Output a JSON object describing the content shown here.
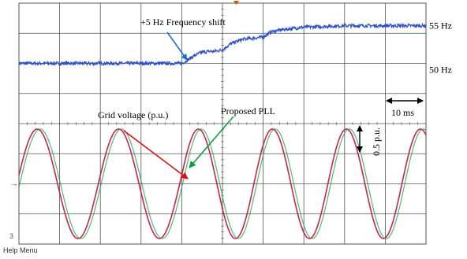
{
  "chart_data": [
    {
      "type": "line",
      "title": "",
      "xlabel": "",
      "ylabel": "",
      "xlim_ms": [
        0,
        100
      ],
      "ylim_hz": [
        42,
        58
      ],
      "grid": true,
      "series": [
        {
          "name": "",
          "color": "#3050c8",
          "x_ms": [
            0,
            20,
            40,
            41,
            43,
            45,
            47,
            48,
            50,
            52,
            55,
            60,
            62,
            65,
            70,
            75,
            80,
            100
          ],
          "y_hz": [
            50,
            50,
            50,
            50.3,
            51,
            51.5,
            51.6,
            51.6,
            51.8,
            52.6,
            53.2,
            53.5,
            54.2,
            54.5,
            54.8,
            54.9,
            55,
            55
          ]
        }
      ],
      "value_labels": [
        "55 Hz",
        "50 Hz"
      ],
      "value_label_levels_hz": [
        55,
        50
      ],
      "annotations": {
        "freq_shift": "+5 Hz Frequency shift",
        "time_scale": "10 ms"
      }
    },
    {
      "type": "line",
      "title": "",
      "xlabel": "",
      "ylabel": "",
      "xlim_ms": [
        0,
        100
      ],
      "ylim_pu": [
        -1.1,
        1.1
      ],
      "grid": true,
      "waveform_frequency_hz": [
        50,
        55
      ],
      "frequency_step_ms": 40,
      "series": [
        {
          "name": "Grid voltage (p.u.)",
          "color": "#cc2255",
          "amplitude_pu": 1.0,
          "lag_ms": 0
        },
        {
          "name": "Proposed PLL",
          "color": "#22aa44",
          "amplitude_pu": 1.0,
          "lag_ms": 0.7
        }
      ],
      "annotations": {
        "amplitude_scale": "0.5 p.u."
      }
    }
  ],
  "colors": {
    "background": "#ffffff",
    "grid": "#555555",
    "arrow_freq": "#1a6fd0",
    "arrow_grid": "#e01010",
    "arrow_pll": "#10a040",
    "marker": "#c06000"
  },
  "footer": {
    "help_menu": "Help Menu"
  }
}
